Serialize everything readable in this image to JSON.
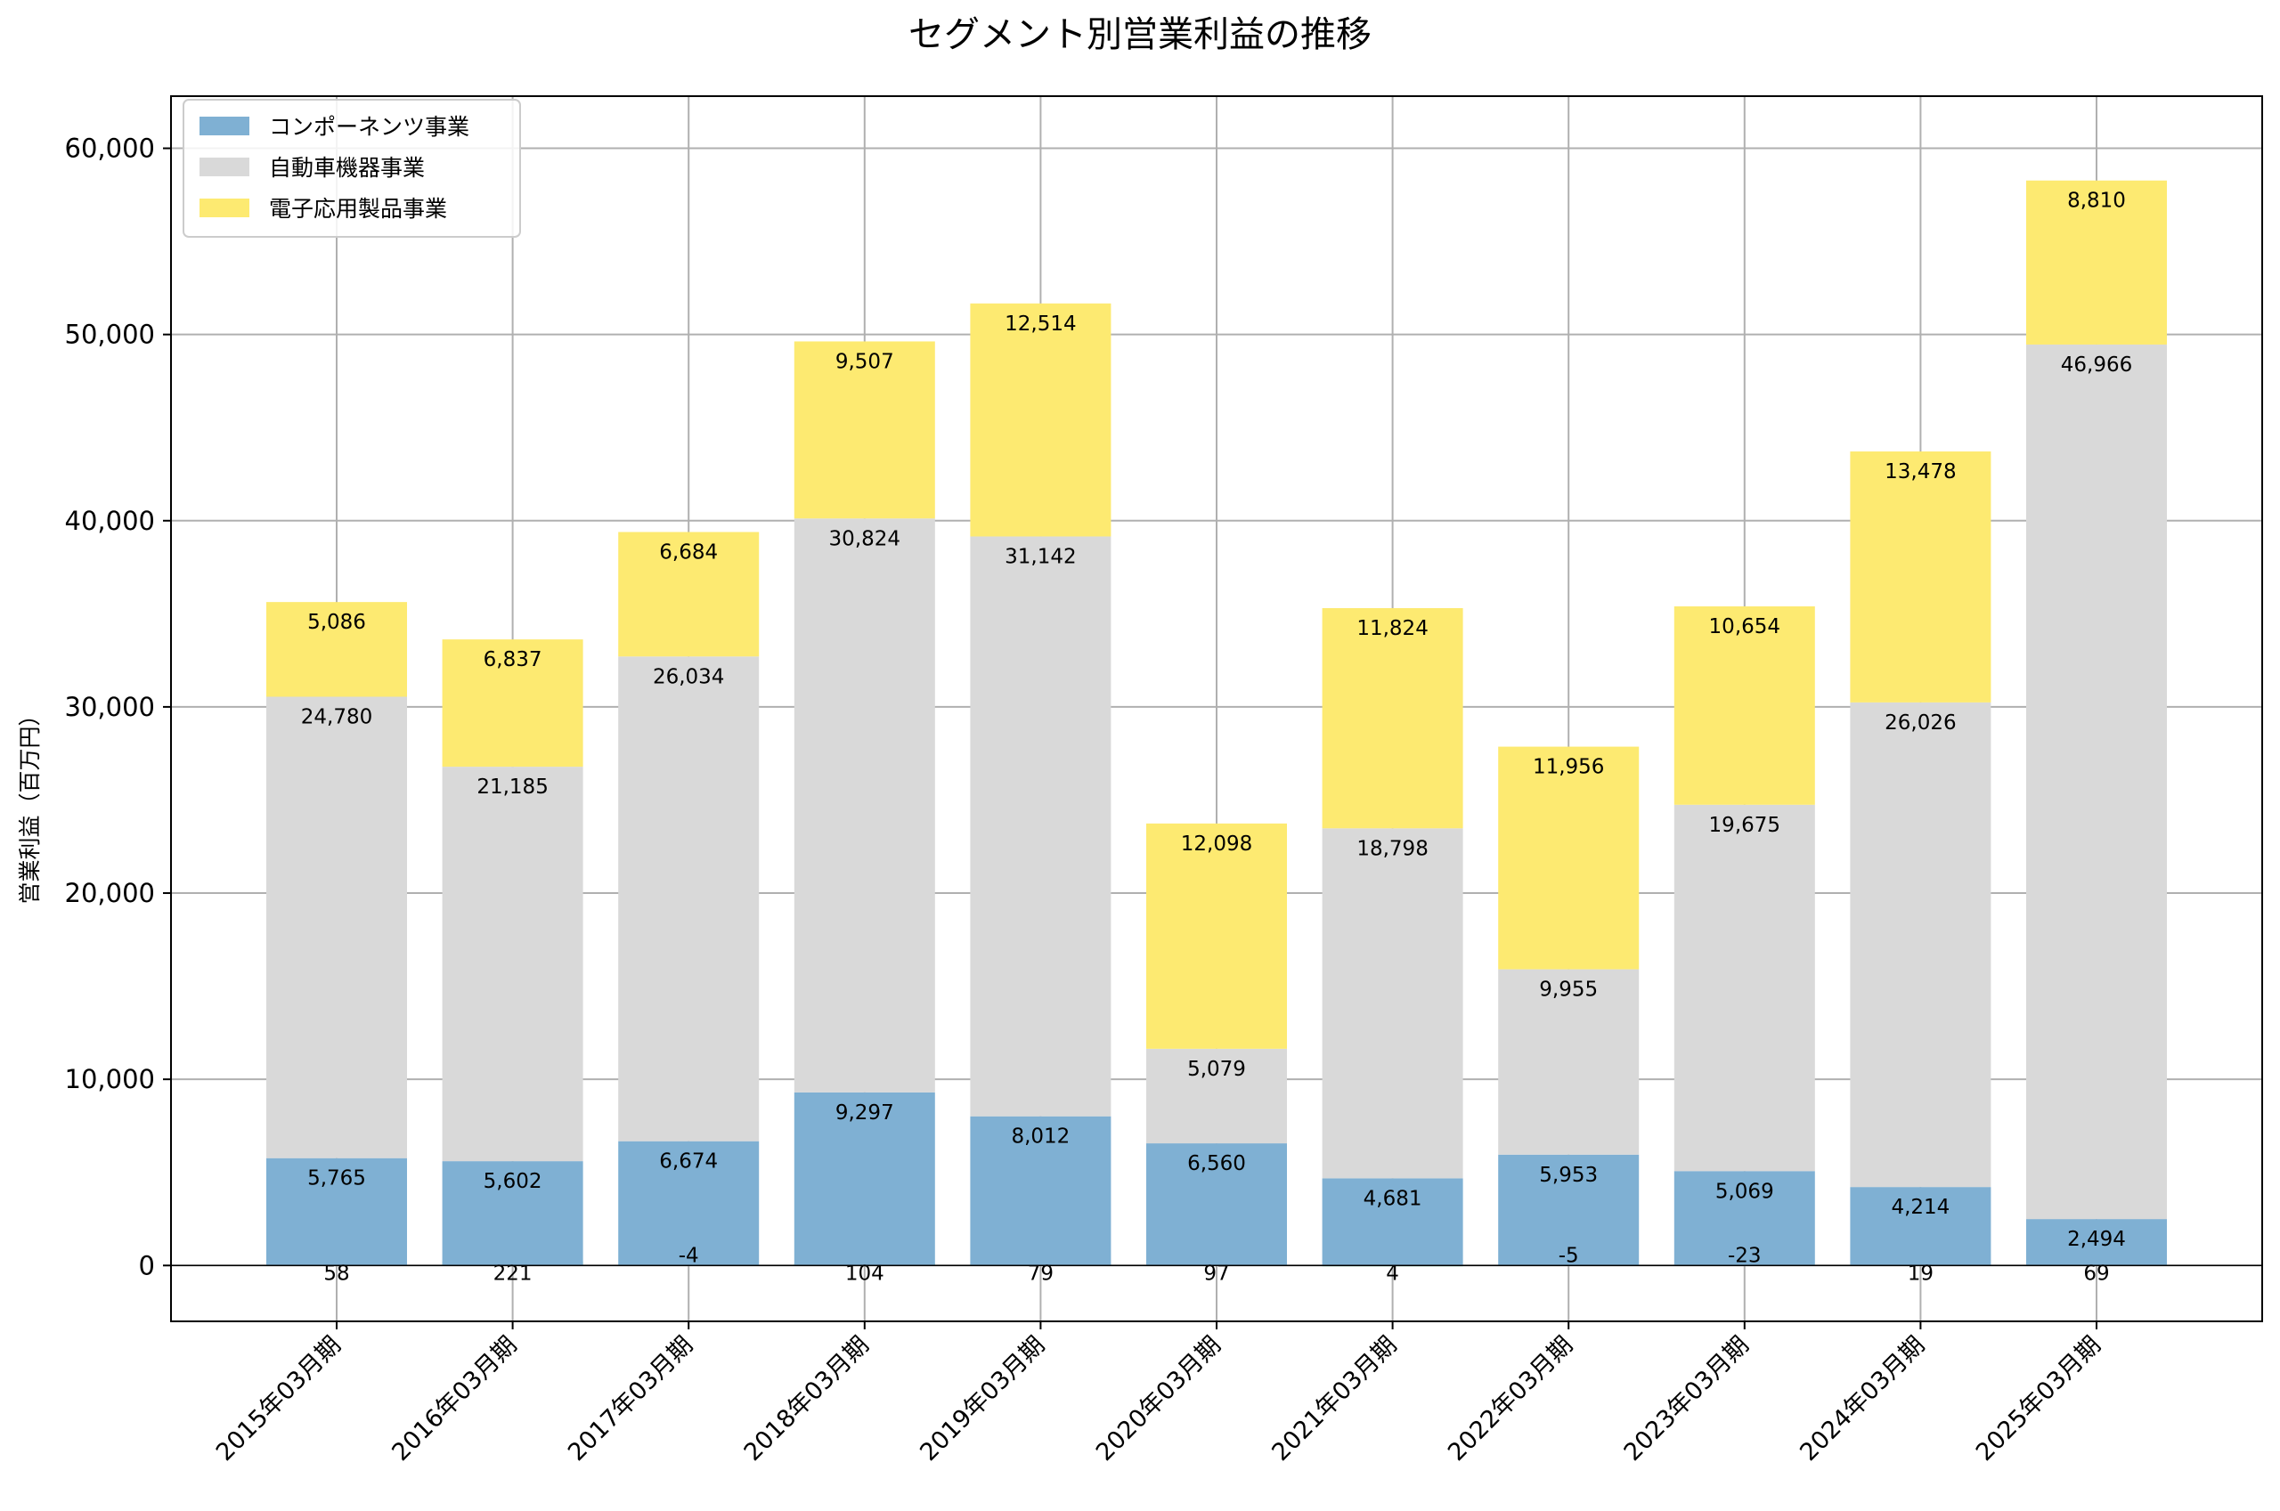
{
  "chart_data": {
    "type": "bar",
    "stacked": true,
    "title": "セグメント別営業利益の推移",
    "xlabel": "",
    "ylabel": "営業利益（百万円）",
    "ylim": [
      -3000,
      62800
    ],
    "yticks": [
      0,
      10000,
      20000,
      30000,
      40000,
      50000,
      60000
    ],
    "grid": true,
    "legend_position": "top-left",
    "categories": [
      "2015年03月期",
      "2016年03月期",
      "2017年03月期",
      "2018年03月期",
      "2019年03月期",
      "2020年03月期",
      "2021年03月期",
      "2022年03月期",
      "2023年03月期",
      "2024年03月期",
      "2025年03月期"
    ],
    "series": [
      {
        "name": "",
        "color": "#66cc99",
        "legend": false,
        "values": [
          58,
          221,
          -4,
          104,
          79,
          97,
          4,
          -5,
          -23,
          19,
          69
        ]
      },
      {
        "name": "コンポーネンツ事業",
        "color": "#7fb0d3",
        "legend": true,
        "values": [
          5765,
          5602,
          6674,
          9297,
          8012,
          6560,
          4681,
          5953,
          5069,
          4214,
          2494
        ]
      },
      {
        "name": "自動車機器事業",
        "color": "#d9d9d9",
        "legend": true,
        "values": [
          24780,
          21185,
          26034,
          30824,
          31142,
          5079,
          18798,
          9955,
          19675,
          26026,
          46966
        ]
      },
      {
        "name": "電子応用製品事業",
        "color": "#fdea71",
        "legend": true,
        "values": [
          5086,
          6837,
          6684,
          9507,
          12514,
          12098,
          11824,
          11956,
          10654,
          13478,
          8810
        ]
      }
    ]
  }
}
